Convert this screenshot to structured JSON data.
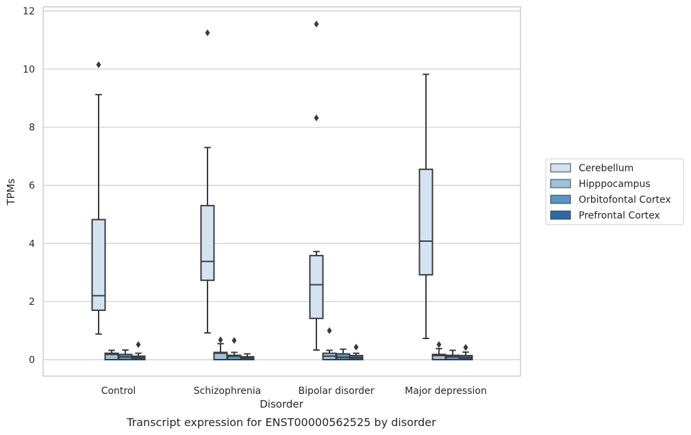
{
  "chart_data": {
    "type": "box",
    "title": "",
    "caption": "Transcript expression for ENST00000562525 by disorder",
    "xlabel": "Disorder",
    "ylabel": "TPMs",
    "ylim": [
      -0.55,
      12.15
    ],
    "yticks": [
      0,
      2,
      4,
      6,
      8,
      10,
      12
    ],
    "grid": "horizontal",
    "legend_position": "right",
    "categories": [
      "Control",
      "Schizophrenia",
      "Bipolar disorder",
      "Major depression"
    ],
    "series": [
      {
        "name": "Cerebellum",
        "color": "#d3e3f1",
        "boxes": [
          {
            "whisker_low": 0.88,
            "q1": 1.7,
            "median": 2.2,
            "q3": 4.82,
            "whisker_high": 9.12,
            "outliers": [
              10.15
            ]
          },
          {
            "whisker_low": 0.92,
            "q1": 2.73,
            "median": 3.38,
            "q3": 5.3,
            "whisker_high": 7.3,
            "outliers": [
              11.25
            ]
          },
          {
            "whisker_low": 0.33,
            "q1": 1.42,
            "median": 2.58,
            "q3": 3.58,
            "whisker_high": 3.72,
            "outliers": [
              8.32,
              11.55
            ]
          },
          {
            "whisker_low": 0.73,
            "q1": 2.92,
            "median": 4.08,
            "q3": 6.55,
            "whisker_high": 9.82,
            "outliers": []
          }
        ]
      },
      {
        "name": "Hipppocampus",
        "color": "#9cc3dc",
        "boxes": [
          {
            "whisker_low": 0.0,
            "q1": 0.0,
            "median": 0.18,
            "q3": 0.22,
            "whisker_high": 0.32,
            "outliers": []
          },
          {
            "whisker_low": 0.0,
            "q1": 0.0,
            "median": 0.22,
            "q3": 0.25,
            "whisker_high": 0.55,
            "outliers": [
              0.68
            ]
          },
          {
            "whisker_low": 0.0,
            "q1": 0.0,
            "median": 0.12,
            "q3": 0.22,
            "whisker_high": 0.32,
            "outliers": [
              1.0
            ]
          },
          {
            "whisker_low": 0.0,
            "q1": 0.0,
            "median": 0.14,
            "q3": 0.18,
            "whisker_high": 0.38,
            "outliers": [
              0.52
            ]
          }
        ]
      },
      {
        "name": "Orbitofontal Cortex",
        "color": "#5497c8",
        "boxes": [
          {
            "whisker_low": 0.0,
            "q1": 0.0,
            "median": 0.1,
            "q3": 0.18,
            "whisker_high": 0.33,
            "outliers": []
          },
          {
            "whisker_low": 0.0,
            "q1": 0.0,
            "median": 0.12,
            "q3": 0.15,
            "whisker_high": 0.25,
            "outliers": [
              0.66
            ]
          },
          {
            "whisker_low": 0.0,
            "q1": 0.0,
            "median": 0.08,
            "q3": 0.2,
            "whisker_high": 0.36,
            "outliers": []
          },
          {
            "whisker_low": 0.0,
            "q1": 0.0,
            "median": 0.1,
            "q3": 0.15,
            "whisker_high": 0.32,
            "outliers": []
          }
        ]
      },
      {
        "name": "Prefrontal Cortex",
        "color": "#2b69a8",
        "boxes": [
          {
            "whisker_low": 0.0,
            "q1": 0.0,
            "median": 0.06,
            "q3": 0.12,
            "whisker_high": 0.22,
            "outliers": [
              0.52
            ]
          },
          {
            "whisker_low": 0.0,
            "q1": 0.0,
            "median": 0.06,
            "q3": 0.1,
            "whisker_high": 0.2,
            "outliers": []
          },
          {
            "whisker_low": 0.0,
            "q1": 0.0,
            "median": 0.06,
            "q3": 0.14,
            "whisker_high": 0.22,
            "outliers": [
              0.43
            ]
          },
          {
            "whisker_low": 0.0,
            "q1": 0.0,
            "median": 0.06,
            "q3": 0.14,
            "whisker_high": 0.26,
            "outliers": [
              0.42
            ]
          }
        ]
      }
    ]
  }
}
